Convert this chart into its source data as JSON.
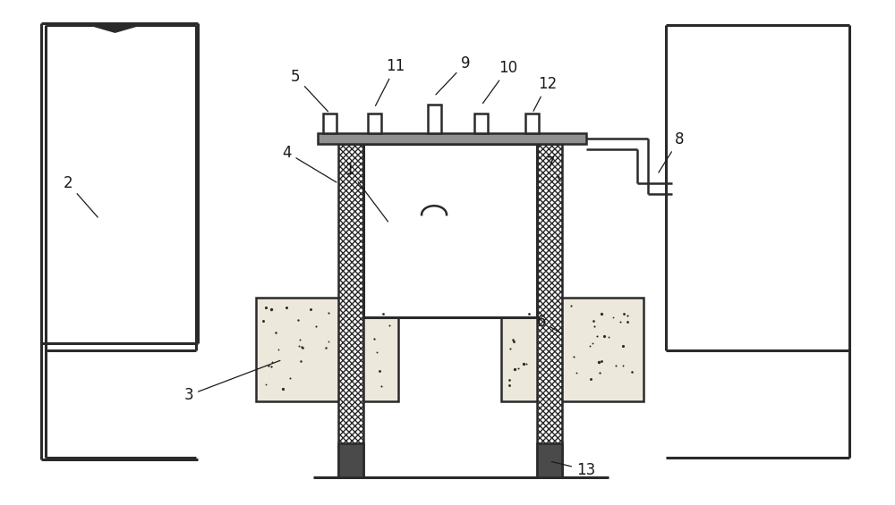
{
  "bg_color": "#ffffff",
  "line_color": "#2a2a2a",
  "lw": 1.8,
  "lw2": 2.2,
  "fig_width": 10.0,
  "fig_height": 5.65
}
